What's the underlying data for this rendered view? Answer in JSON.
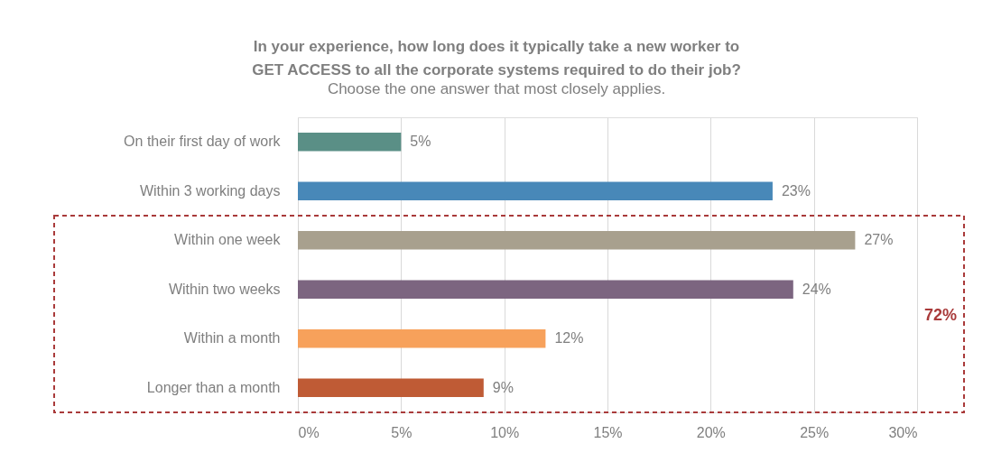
{
  "chart_data": {
    "type": "bar",
    "orientation": "horizontal",
    "title": [
      "In your experience, how long does it typically take a new worker to",
      "GET ACCESS to all the corporate systems required to do their job?"
    ],
    "subtitle": "Choose the one answer that most closely applies.",
    "categories": [
      "On their first day of work",
      "Within 3 working days",
      "Within one week",
      "Within two weeks",
      "Within a month",
      "Longer than a month"
    ],
    "values": [
      5,
      23,
      27,
      24,
      12,
      9
    ],
    "colors": [
      "#5a8f86",
      "#4888b8",
      "#a8a08e",
      "#7c6580",
      "#f7a15b",
      "#bf5b35"
    ],
    "value_labels": [
      "5%",
      "23%",
      "27%",
      "24%",
      "12%",
      "9%"
    ],
    "annotations": [
      "72%"
    ],
    "xlim": [
      0,
      30
    ],
    "xticks": [
      {
        "value": 0,
        "label": "0%"
      },
      {
        "value": 5,
        "label": "5%"
      },
      {
        "value": 10,
        "label": "10%"
      },
      {
        "value": 15,
        "label": "15%"
      },
      {
        "value": 20,
        "label": "20%"
      },
      {
        "value": 25,
        "label": "25%"
      },
      {
        "value": 30,
        "label": "30%"
      }
    ],
    "grid": "x",
    "legend": false
  }
}
